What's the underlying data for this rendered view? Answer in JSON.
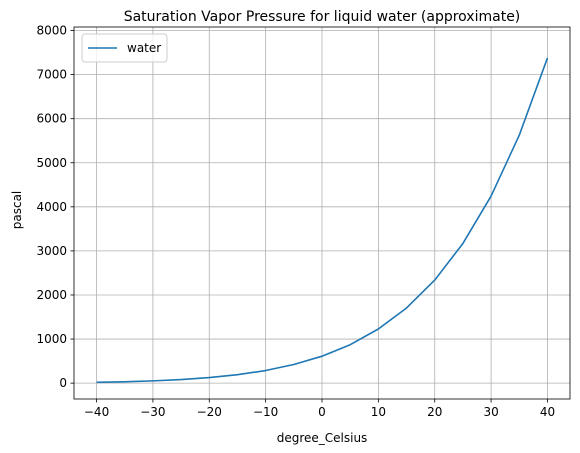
{
  "chart_data": {
    "type": "line",
    "title": "Saturation Vapor Pressure for liquid water (approximate)",
    "xlabel": "degree_Celsius",
    "ylabel": "pascal",
    "xlim": [
      -44,
      44
    ],
    "ylim": [
      -360,
      8080
    ],
    "xticks": [
      -40,
      -30,
      -20,
      -10,
      0,
      10,
      20,
      30,
      40
    ],
    "yticks": [
      0,
      1000,
      2000,
      3000,
      4000,
      5000,
      6000,
      7000,
      8000
    ],
    "grid": true,
    "legend_position": "upper-left",
    "series": [
      {
        "name": "water",
        "color": "#1f77b4",
        "x": [
          -40,
          -35,
          -30,
          -25,
          -20,
          -15,
          -10,
          -5,
          0,
          5,
          10,
          15,
          20,
          25,
          30,
          35,
          40
        ],
        "y": [
          19,
          31,
          51,
          81,
          126,
          191,
          286,
          422,
          611,
          872,
          1228,
          1705,
          2338,
          3169,
          4245,
          5625,
          7378
        ]
      }
    ]
  }
}
